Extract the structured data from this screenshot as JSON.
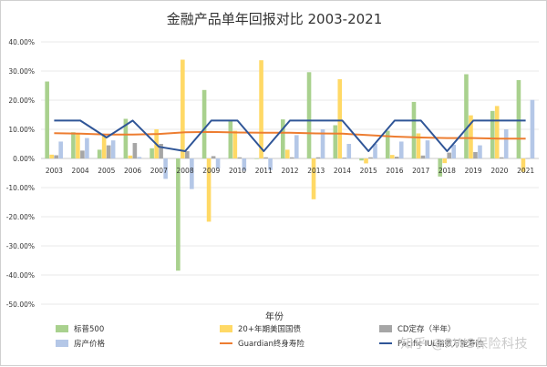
{
  "chart_data": {
    "type": "bar",
    "title": "金融产品单年回报对比 2003-2021",
    "xlabel": "年份",
    "ylabel": "",
    "ylim": [
      -0.5,
      0.4
    ],
    "y_tick_step": 0.1,
    "y_format": "percent_2dp",
    "grid": true,
    "legend_position": "bottom",
    "categories": [
      "2003",
      "2004",
      "2005",
      "2006",
      "2007",
      "2008",
      "2009",
      "2010",
      "2011",
      "2012",
      "2013",
      "2014",
      "2015",
      "2016",
      "2017",
      "2018",
      "2019",
      "2020",
      "2021"
    ],
    "series": [
      {
        "name": "标普500",
        "kind": "bar",
        "color": "#a9d18e",
        "values": [
          0.264,
          0.09,
          0.03,
          0.136,
          0.035,
          -0.385,
          0.235,
          0.128,
          0.0,
          0.134,
          0.296,
          0.114,
          -0.007,
          0.095,
          0.194,
          -0.062,
          0.289,
          0.163,
          0.269
        ]
      },
      {
        "name": "20+年期美国国债",
        "kind": "bar",
        "color": "#ffd966",
        "values": [
          0.013,
          0.085,
          0.078,
          0.01,
          0.1,
          0.339,
          -0.217,
          0.095,
          0.337,
          0.03,
          -0.14,
          0.272,
          -0.017,
          0.012,
          0.086,
          -0.016,
          0.148,
          0.18,
          -0.046
        ]
      },
      {
        "name": "CD定存（半年）",
        "kind": "bar",
        "color": "#a6a6a6",
        "values": [
          0.011,
          0.027,
          0.045,
          0.053,
          0.05,
          0.025,
          0.008,
          0.004,
          0.004,
          0.004,
          0.004,
          0.003,
          0.004,
          0.006,
          0.01,
          0.02,
          0.022,
          0.004,
          0.001
        ]
      },
      {
        "name": "房产价格",
        "kind": "bar",
        "color": "#b4c7e7",
        "values": [
          0.058,
          0.07,
          0.062,
          0.005,
          -0.07,
          -0.105,
          -0.035,
          -0.042,
          -0.04,
          0.08,
          0.1,
          0.05,
          0.05,
          0.058,
          0.062,
          0.047,
          0.045,
          0.1,
          0.201
        ]
      },
      {
        "name": "Guardian终身寿险",
        "kind": "line",
        "color": "#ed7d31",
        "values": [
          0.087,
          0.085,
          0.082,
          0.082,
          0.084,
          0.09,
          0.091,
          0.089,
          0.088,
          0.088,
          0.086,
          0.085,
          0.08,
          0.075,
          0.072,
          0.07,
          0.07,
          0.068,
          0.068
        ]
      },
      {
        "name": "Pacific IUL指数万能寿险",
        "kind": "line",
        "color": "#2f5597",
        "values": [
          0.13,
          0.13,
          0.072,
          0.13,
          0.04,
          0.025,
          0.13,
          0.13,
          0.025,
          0.13,
          0.13,
          0.13,
          0.025,
          0.13,
          0.13,
          0.025,
          0.13,
          0.13,
          0.13
        ]
      }
    ]
  },
  "watermark": "知乎 @RWS保险科技"
}
